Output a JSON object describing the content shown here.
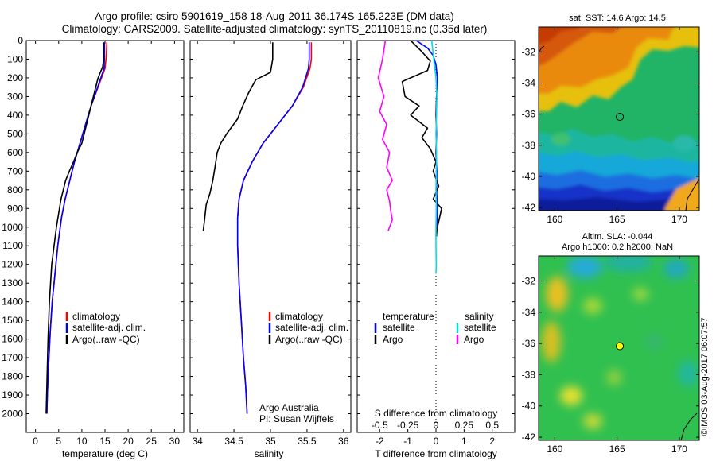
{
  "header": {
    "title_line1": "Argo profile: csiro 5901619_158 18-Aug-2011 36.174S 165.223E (DM data)",
    "title_line2": "Climatology: CARS2009. Satellite-adjusted climatology: synTS_20110819.nc (0.35d later)"
  },
  "watermark": "©IMOS 03-Aug-2017 06:07:57",
  "colors": {
    "climatology": "#ff0000",
    "satellite": "#0000ff",
    "argo": "#000000",
    "sat_salinity": "#00e0e0",
    "argo_salinity": "#ff00ff"
  },
  "chart_data": [
    {
      "type": "line",
      "name": "temperature-profile",
      "xlabel": "temperature (deg C)",
      "xlim": [
        -2,
        32
      ],
      "ylim": [
        0,
        2100
      ],
      "y_inverted": true,
      "xticks": [
        0,
        5,
        10,
        15,
        20,
        25,
        30
      ],
      "yticks": [
        0,
        100,
        200,
        300,
        400,
        500,
        600,
        700,
        800,
        900,
        1000,
        1100,
        1200,
        1300,
        1400,
        1500,
        1600,
        1700,
        1800,
        1900,
        2000
      ],
      "legend": [
        "climatology",
        "satellite-adj. clim.",
        "Argo(..raw -QC)"
      ],
      "series": [
        {
          "name": "climatology",
          "color": "#ff0000",
          "x": [
            15.4,
            15.3,
            15.0,
            13.5,
            12.0,
            10.8,
            9.6,
            8.4,
            7.4,
            6.4,
            5.6,
            4.8,
            4.2,
            3.6,
            3.2,
            2.9,
            2.7,
            2.55,
            2.45
          ],
          "y": [
            10,
            80,
            150,
            250,
            350,
            450,
            550,
            650,
            750,
            850,
            950,
            1100,
            1250,
            1400,
            1550,
            1700,
            1800,
            1900,
            2000
          ]
        },
        {
          "name": "satellite-adj. clim.",
          "color": "#0000ff",
          "x": [
            14.9,
            14.9,
            14.8,
            13.4,
            12.0,
            10.8,
            9.6,
            8.4,
            7.4,
            6.4,
            5.6,
            4.8,
            4.2,
            3.6,
            3.2,
            2.9,
            2.7,
            2.55,
            2.45
          ],
          "y": [
            10,
            80,
            150,
            250,
            350,
            450,
            550,
            650,
            750,
            850,
            950,
            1100,
            1250,
            1400,
            1550,
            1700,
            1800,
            1900,
            2000
          ]
        },
        {
          "name": "Argo(..raw -QC)",
          "color": "#000000",
          "x": [
            14.7,
            14.7,
            14.5,
            13.5,
            12.5,
            11.5,
            10.5,
            10.0,
            9.0,
            8.2,
            7.3,
            6.5,
            5.5,
            4.5,
            3.5,
            3.0,
            2.7,
            2.5,
            2.3
          ],
          "y": [
            10,
            100,
            140,
            200,
            300,
            400,
            500,
            550,
            600,
            650,
            700,
            750,
            850,
            1000,
            1200,
            1400,
            1600,
            1800,
            2000
          ]
        }
      ]
    },
    {
      "type": "line",
      "name": "salinity-profile",
      "xlabel": "salinity",
      "xlim": [
        33.9,
        36.1
      ],
      "ylim": [
        0,
        2100
      ],
      "y_inverted": true,
      "xticks": [
        34,
        34.5,
        35,
        35.5,
        36
      ],
      "xtick_labels": [
        "34",
        "34.5",
        "35",
        "35.5",
        "36"
      ],
      "legend": [
        "climatology",
        "satellite-adj. clim.",
        "Argo(..raw -QC)"
      ],
      "annotation_line1": "Argo Australia",
      "annotation_line2": "PI: Susan Wijffels",
      "series": [
        {
          "name": "climatology",
          "color": "#ff0000",
          "x": [
            35.56,
            35.56,
            35.54,
            35.45,
            35.3,
            35.1,
            34.9,
            34.75,
            34.63,
            34.57,
            34.55,
            34.55,
            34.57,
            34.6,
            34.63,
            34.66,
            34.68
          ],
          "y": [
            10,
            100,
            150,
            250,
            350,
            450,
            550,
            650,
            750,
            850,
            950,
            1100,
            1300,
            1500,
            1700,
            1850,
            2000
          ]
        },
        {
          "name": "satellite-adj. clim.",
          "color": "#0000ff",
          "x": [
            35.53,
            35.53,
            35.52,
            35.44,
            35.3,
            35.1,
            34.9,
            34.75,
            34.63,
            34.57,
            34.55,
            34.55,
            34.57,
            34.6,
            34.63,
            34.66,
            34.68
          ],
          "y": [
            10,
            100,
            150,
            250,
            350,
            450,
            550,
            650,
            750,
            850,
            950,
            1100,
            1300,
            1500,
            1700,
            1850,
            2000
          ]
        },
        {
          "name": "Argo(..raw -QC)",
          "color": "#000000",
          "x": [
            35.03,
            35.03,
            35.0,
            34.8,
            34.7,
            34.62,
            34.55,
            34.4,
            34.32,
            34.27,
            34.24,
            34.21,
            34.17,
            34.12,
            34.1,
            34.08
          ],
          "y": [
            10,
            100,
            170,
            210,
            280,
            350,
            420,
            500,
            550,
            600,
            680,
            750,
            820,
            880,
            950,
            1020
          ]
        }
      ]
    },
    {
      "type": "line",
      "name": "difference-profile",
      "xlabel": "T difference from climatology",
      "xlabel_top": "S difference from climatology",
      "xlim": [
        -2.8,
        2.8
      ],
      "ylim": [
        0,
        2100
      ],
      "y_inverted": true,
      "t_ticks": [
        -2,
        -1,
        0,
        1,
        2
      ],
      "t_tick_labels": [
        "-2",
        "-1",
        "0",
        "1",
        "2"
      ],
      "s_ticks": [
        -0.5,
        -0.25,
        0,
        0.25,
        0.5
      ],
      "s_tick_labels": [
        "-0.5",
        "-0.25",
        "0",
        "0.25",
        "0.5"
      ],
      "legend_head_temperature": "temperature",
      "legend_head_salinity": "salinity",
      "legend_temperature": [
        "satellite",
        "Argo"
      ],
      "legend_salinity": [
        "satellite",
        "Argo"
      ],
      "series": [
        {
          "name": "T satellite",
          "color": "#0000ff",
          "x": [
            -0.7,
            -0.3,
            -0.1,
            0.0,
            0.05,
            0.02,
            0.0,
            0.02,
            0.0,
            0.03,
            0.02,
            0.05,
            0.03,
            0.02
          ],
          "y": [
            0,
            40,
            80,
            130,
            200,
            300,
            400,
            500,
            600,
            700,
            800,
            900,
            1000,
            1050
          ]
        },
        {
          "name": "T Argo",
          "color": "#000000",
          "x": [
            -0.9,
            -0.5,
            -0.2,
            -0.3,
            -1.2,
            -1.1,
            -0.6,
            -0.9,
            -0.3,
            -0.5,
            -0.2,
            0.0,
            -0.1,
            0.1,
            -0.1,
            0.2,
            0.05,
            0.0
          ],
          "y": [
            0,
            60,
            110,
            160,
            220,
            300,
            350,
            400,
            470,
            520,
            580,
            650,
            700,
            780,
            850,
            900,
            1000,
            1050
          ]
        },
        {
          "name": "S satellite",
          "color": "#00e0e0",
          "x": [
            -0.15,
            -0.08,
            0.0,
            0.03,
            0.02,
            0.0,
            0.02,
            0.01,
            0.0,
            0.01,
            0.0,
            0.0,
            0.01,
            0.0
          ],
          "y": [
            0,
            100,
            200,
            300,
            400,
            500,
            600,
            700,
            800,
            900,
            1000,
            1100,
            1200,
            1250
          ]
        },
        {
          "name": "S Argo",
          "color": "#ff00ff",
          "x": [
            -1.8,
            -1.9,
            -2.05,
            -1.85,
            -2.0,
            -1.75,
            -1.9,
            -1.65,
            -1.75,
            -1.55,
            -1.75,
            -1.65,
            -1.6,
            -1.55,
            -1.7
          ],
          "y": [
            0,
            100,
            200,
            300,
            380,
            450,
            530,
            600,
            680,
            750,
            800,
            860,
            920,
            960,
            1020
          ]
        }
      ]
    },
    {
      "type": "heatmap",
      "name": "sst-map",
      "title": "sat. SST: 14.6 Argo: 14.5",
      "xlim": [
        158.7,
        171.6
      ],
      "ylim": [
        -42.2,
        -30.4
      ],
      "xticks": [
        160,
        165,
        170
      ],
      "yticks": [
        -32,
        -34,
        -36,
        -38,
        -40,
        -42
      ],
      "marker": {
        "lon": 165.223,
        "lat": -36.174,
        "fill": "none"
      }
    },
    {
      "type": "heatmap",
      "name": "sla-map",
      "title_line1": "Altim. SLA: -0.044",
      "title_line2": "Argo h1000: 0.2 h2000: NaN",
      "xlim": [
        158.7,
        171.6
      ],
      "ylim": [
        -42.2,
        -30.4
      ],
      "xticks": [
        160,
        165,
        170
      ],
      "yticks": [
        -32,
        -34,
        -36,
        -38,
        -40,
        -42
      ],
      "marker": {
        "lon": 165.223,
        "lat": -36.174,
        "fill": "#ffff00"
      }
    }
  ]
}
